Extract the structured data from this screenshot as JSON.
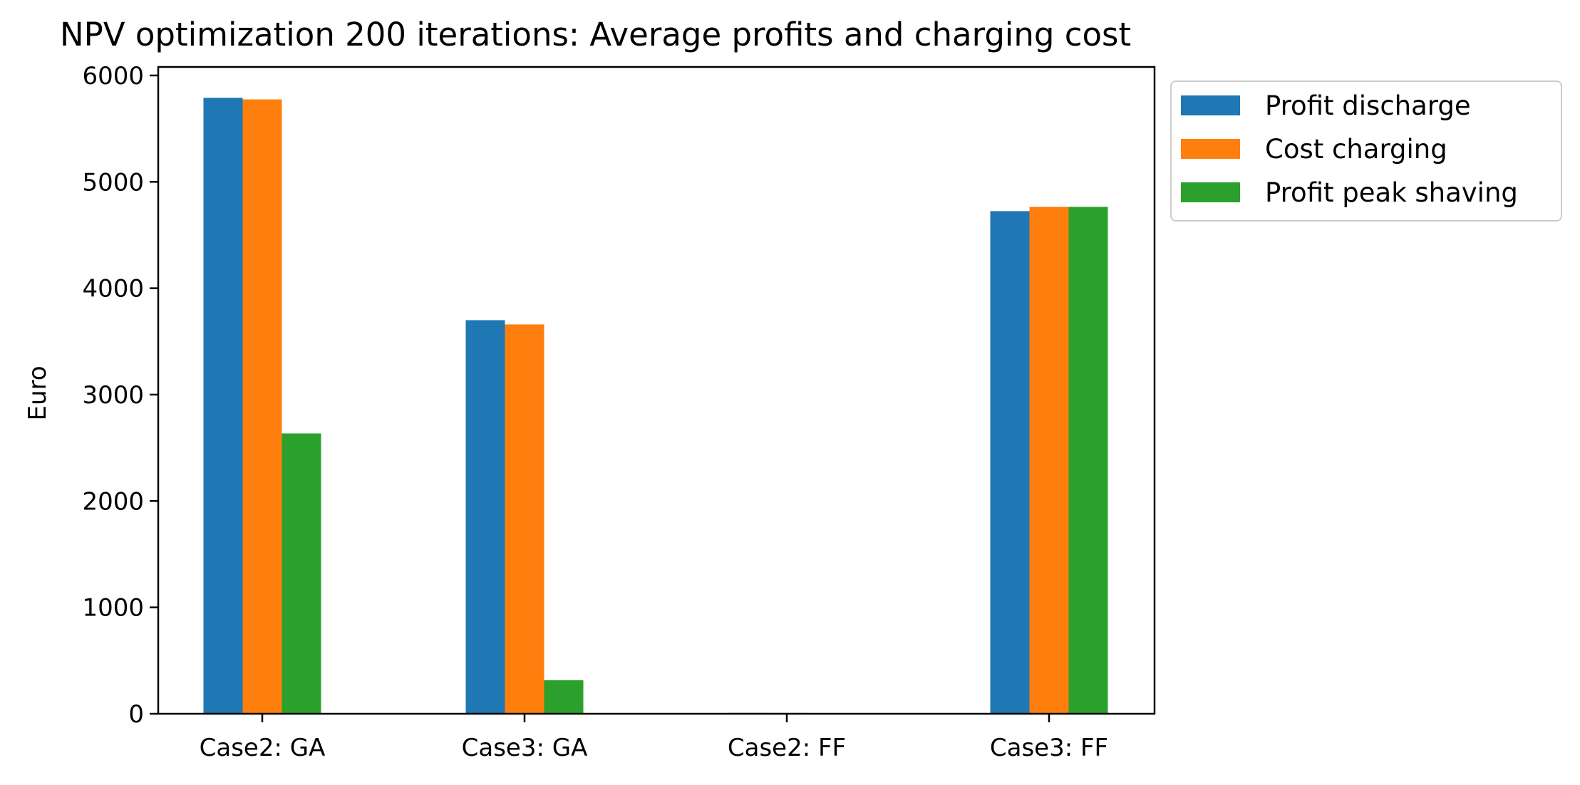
{
  "chart_data": {
    "type": "bar",
    "title": "NPV optimization 200 iterations: Average profits and charging cost",
    "xlabel": "",
    "ylabel": "Euro",
    "categories": [
      "Case2: GA",
      "Case3: GA",
      "Case2: FF",
      "Case3: FF"
    ],
    "series": [
      {
        "name": "Profit discharge",
        "color": "#1f77b4",
        "values": [
          5790,
          3700,
          8,
          4725
        ]
      },
      {
        "name": "Cost charging",
        "color": "#ff7f0e",
        "values": [
          5775,
          3660,
          8,
          4765
        ]
      },
      {
        "name": "Profit peak shaving",
        "color": "#2ca02c",
        "values": [
          2635,
          315,
          0,
          4765
        ]
      }
    ],
    "yticks": [
      "0",
      "1000",
      "2000",
      "3000",
      "4000",
      "5000",
      "6000"
    ],
    "ylim": [
      0,
      6080
    ],
    "grid": false,
    "legend_position": "outside-top-right"
  }
}
